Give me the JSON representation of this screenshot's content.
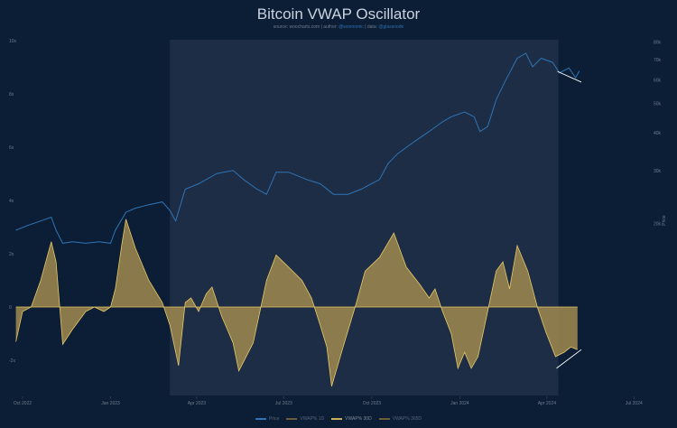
{
  "title": "Bitcoin VWAP Oscillator",
  "subtitle": {
    "source_label": "source:",
    "source": "woocharts.com",
    "author_label": "| author:",
    "author": "@woonomic",
    "data_label": "| data:",
    "data": "@glassnode"
  },
  "colors": {
    "background": "#0c1e35",
    "highlight_band": "#1c2d45",
    "price": "#2f74b5",
    "oscillator_fill": "#a08a4f",
    "oscillator_line": "#e6c867",
    "trendline": "#ffffff"
  },
  "chart_data": {
    "type": "line",
    "title": "Bitcoin VWAP Oscillator",
    "x_ticks": [
      "Oct 2022",
      "Jan 2023",
      "Apr 2023",
      "Jul 2023",
      "Oct 2023",
      "Jan 2024",
      "Apr 2024",
      "Jul 2024"
    ],
    "x_tick_dates": [
      "2022-10-01",
      "2023-01-01",
      "2023-04-01",
      "2023-07-01",
      "2023-10-01",
      "2024-01-01",
      "2024-04-01",
      "2024-07-01"
    ],
    "y_left_ticks": [
      "10x",
      "8x",
      "6x",
      "4x",
      "2x",
      "0",
      "-2x"
    ],
    "y_left_tick_values": [
      10,
      8,
      6,
      4,
      2,
      0,
      -2
    ],
    "y_right_label": "Price",
    "y_right_scale": "log",
    "y_right_ticks": [
      "80k",
      "70k",
      "60k",
      "50k",
      "40k",
      "30k",
      "20k"
    ],
    "y_right_tick_values": [
      80000,
      70000,
      60000,
      50000,
      40000,
      30000,
      20000
    ],
    "grid": false,
    "legend_position": "bottom",
    "legend": [
      "Price",
      "VWAP% 1D",
      "VWAP% 30D",
      "VWAP% 365D"
    ],
    "highlight_range": [
      "2023-03-04",
      "2024-04-13"
    ],
    "series": [
      {
        "name": "Price",
        "axis": "right",
        "points": [
          [
            "2022-09-24",
            19000
          ],
          [
            "2022-10-06",
            19700
          ],
          [
            "2022-10-20",
            20400
          ],
          [
            "2022-10-31",
            21000
          ],
          [
            "2022-11-05",
            19000
          ],
          [
            "2022-11-12",
            17200
          ],
          [
            "2022-11-22",
            17400
          ],
          [
            "2022-12-06",
            17200
          ],
          [
            "2022-12-20",
            17400
          ],
          [
            "2023-01-01",
            17200
          ],
          [
            "2023-01-06",
            19000
          ],
          [
            "2023-01-17",
            21800
          ],
          [
            "2023-01-27",
            22500
          ],
          [
            "2023-02-10",
            23100
          ],
          [
            "2023-02-24",
            23600
          ],
          [
            "2023-03-04",
            22100
          ],
          [
            "2023-03-10",
            20400
          ],
          [
            "2023-03-20",
            26000
          ],
          [
            "2023-04-03",
            27100
          ],
          [
            "2023-04-22",
            29300
          ],
          [
            "2023-05-09",
            30000
          ],
          [
            "2023-05-20",
            28000
          ],
          [
            "2023-06-03",
            26000
          ],
          [
            "2023-06-13",
            25000
          ],
          [
            "2023-06-23",
            29600
          ],
          [
            "2023-07-06",
            29600
          ],
          [
            "2023-07-25",
            28000
          ],
          [
            "2023-08-08",
            27100
          ],
          [
            "2023-08-22",
            25000
          ],
          [
            "2023-09-06",
            25000
          ],
          [
            "2023-09-20",
            26000
          ],
          [
            "2023-10-09",
            28000
          ],
          [
            "2023-10-18",
            31600
          ],
          [
            "2023-10-28",
            34100
          ],
          [
            "2023-11-15",
            37500
          ],
          [
            "2023-11-30",
            40400
          ],
          [
            "2023-12-14",
            43500
          ],
          [
            "2023-12-23",
            45200
          ],
          [
            "2024-01-06",
            46900
          ],
          [
            "2024-01-16",
            45200
          ],
          [
            "2024-01-22",
            40400
          ],
          [
            "2024-01-30",
            41900
          ],
          [
            "2024-02-08",
            51500
          ],
          [
            "2024-02-18",
            59800
          ],
          [
            "2024-03-01",
            70700
          ],
          [
            "2024-03-10",
            73400
          ],
          [
            "2024-03-17",
            66200
          ],
          [
            "2024-03-26",
            70700
          ],
          [
            "2024-04-07",
            68500
          ],
          [
            "2024-04-14",
            63200
          ],
          [
            "2024-04-24",
            65600
          ],
          [
            "2024-05-01",
            60900
          ],
          [
            "2024-05-05",
            64200
          ]
        ]
      },
      {
        "name": "VWAP% 30D",
        "axis": "left",
        "points": [
          [
            "2022-09-24",
            -1.3
          ],
          [
            "2022-10-01",
            -0.17
          ],
          [
            "2022-10-10",
            0
          ],
          [
            "2022-10-20",
            1.0
          ],
          [
            "2022-10-31",
            2.45
          ],
          [
            "2022-11-05",
            1.7
          ],
          [
            "2022-11-12",
            -1.4
          ],
          [
            "2022-11-22",
            -0.85
          ],
          [
            "2022-12-06",
            -0.17
          ],
          [
            "2022-12-15",
            0
          ],
          [
            "2022-12-25",
            -0.17
          ],
          [
            "2023-01-01",
            0
          ],
          [
            "2023-01-06",
            0.68
          ],
          [
            "2023-01-13",
            2.4
          ],
          [
            "2023-01-17",
            3.3
          ],
          [
            "2023-01-27",
            2.2
          ],
          [
            "2023-02-10",
            1.0
          ],
          [
            "2023-02-24",
            0.17
          ],
          [
            "2023-03-04",
            -0.68
          ],
          [
            "2023-03-13",
            -2.2
          ],
          [
            "2023-03-20",
            0.17
          ],
          [
            "2023-03-26",
            0.34
          ],
          [
            "2023-04-03",
            -0.17
          ],
          [
            "2023-04-11",
            0.5
          ],
          [
            "2023-04-17",
            0.75
          ],
          [
            "2023-04-27",
            -0.34
          ],
          [
            "2023-05-09",
            -1.35
          ],
          [
            "2023-05-15",
            -2.4
          ],
          [
            "2023-05-30",
            -1.35
          ],
          [
            "2023-06-13",
            1.0
          ],
          [
            "2023-06-23",
            1.95
          ],
          [
            "2023-07-06",
            1.5
          ],
          [
            "2023-07-20",
            1.0
          ],
          [
            "2023-07-30",
            0.34
          ],
          [
            "2023-08-08",
            -0.68
          ],
          [
            "2023-08-15",
            -1.5
          ],
          [
            "2023-08-20",
            -2.98
          ],
          [
            "2023-09-01",
            -1.5
          ],
          [
            "2023-09-15",
            0.17
          ],
          [
            "2023-09-24",
            1.35
          ],
          [
            "2023-10-09",
            1.86
          ],
          [
            "2023-10-24",
            2.78
          ],
          [
            "2023-11-06",
            1.5
          ],
          [
            "2023-11-20",
            0.85
          ],
          [
            "2023-11-30",
            0.34
          ],
          [
            "2023-12-06",
            0.68
          ],
          [
            "2023-12-14",
            -0.17
          ],
          [
            "2023-12-23",
            -1.0
          ],
          [
            "2023-12-30",
            -2.3
          ],
          [
            "2024-01-06",
            -1.7
          ],
          [
            "2024-01-13",
            -2.3
          ],
          [
            "2024-01-20",
            -1.86
          ],
          [
            "2024-01-30",
            -0.17
          ],
          [
            "2024-02-08",
            1.35
          ],
          [
            "2024-02-15",
            1.7
          ],
          [
            "2024-02-22",
            0.68
          ],
          [
            "2024-03-01",
            2.3
          ],
          [
            "2024-03-12",
            1.35
          ],
          [
            "2024-03-22",
            0
          ],
          [
            "2024-03-31",
            -0.95
          ],
          [
            "2024-04-10",
            -1.86
          ],
          [
            "2024-04-19",
            -1.7
          ],
          [
            "2024-04-26",
            -1.5
          ],
          [
            "2024-05-03",
            -1.6
          ]
        ]
      }
    ],
    "annotations": [
      {
        "type": "trendline",
        "axis": "right",
        "from": [
          "2024-04-12",
          63900
        ],
        "to": [
          "2024-05-07",
          58900
        ]
      },
      {
        "type": "trendline",
        "axis": "left",
        "from": [
          "2024-04-11",
          -2.3
        ],
        "to": [
          "2024-05-07",
          -1.6
        ]
      }
    ]
  }
}
